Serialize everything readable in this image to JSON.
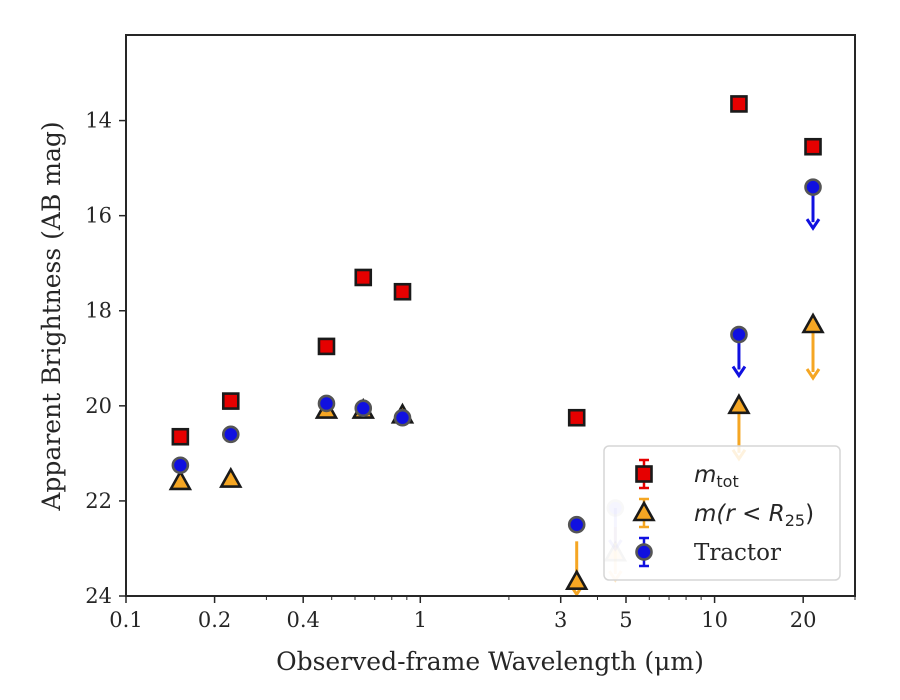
{
  "chart_data": {
    "type": "scatter",
    "title": "",
    "xlabel": "Observed-frame Wavelength (μm)",
    "ylabel": "Apparent Brightness (AB mag)",
    "xscale": "log",
    "xlim": [
      0.1,
      30
    ],
    "ylim": [
      24,
      12.2
    ],
    "y_inverted": true,
    "grid": false,
    "legend_position": "lower-right",
    "x_ticks": [
      0.1,
      0.2,
      0.4,
      1,
      3,
      5,
      10,
      20
    ],
    "x_tick_labels": [
      "0.1",
      "0.2",
      "0.4",
      "1",
      "3",
      "5",
      "10",
      "20"
    ],
    "y_ticks": [
      14,
      16,
      18,
      20,
      22,
      24
    ],
    "y_tick_labels": [
      "14",
      "16",
      "18",
      "20",
      "22",
      "24"
    ],
    "series": [
      {
        "name": "m_tot",
        "legend_label": {
          "base": "m",
          "sub": "tot"
        },
        "marker": "square",
        "color": "#e60000",
        "edge": "#1a1a1a",
        "points": [
          {
            "x": 0.153,
            "y": 20.65
          },
          {
            "x": 0.227,
            "y": 19.9
          },
          {
            "x": 0.48,
            "y": 18.75
          },
          {
            "x": 0.64,
            "y": 17.3
          },
          {
            "x": 0.87,
            "y": 17.6
          },
          {
            "x": 3.4,
            "y": 20.25
          },
          {
            "x": 12.1,
            "y": 13.65
          },
          {
            "x": 21.6,
            "y": 14.55
          }
        ]
      },
      {
        "name": "m(r<R25)",
        "legend_label": {
          "pre": "m(r < R",
          "sub": "25",
          "post": ")"
        },
        "marker": "triangle",
        "color": "#f5a623",
        "edge": "#1a1a1a",
        "points": [
          {
            "x": 0.153,
            "y": 21.6
          },
          {
            "x": 0.227,
            "y": 21.55
          },
          {
            "x": 0.48,
            "y": 20.1
          },
          {
            "x": 0.64,
            "y": 20.1
          },
          {
            "x": 0.87,
            "y": 20.2
          },
          {
            "x": 3.4,
            "y": 23.7,
            "upper_limit": true,
            "from": 22.85
          },
          {
            "x": 4.6,
            "y": 23.1,
            "upper_limit": true,
            "faded": true,
            "from": 22.55
          },
          {
            "x": 12.1,
            "y": 20.0,
            "upper_limit": true,
            "from": 20.0
          },
          {
            "x": 21.6,
            "y": 18.3,
            "upper_limit": true,
            "from": 18.3
          }
        ]
      },
      {
        "name": "Tractor",
        "marker": "circle",
        "color": "#1010e0",
        "edge": "#555555",
        "points": [
          {
            "x": 0.153,
            "y": 21.25
          },
          {
            "x": 0.227,
            "y": 20.6
          },
          {
            "x": 0.48,
            "y": 19.95
          },
          {
            "x": 0.64,
            "y": 20.05
          },
          {
            "x": 0.87,
            "y": 20.25
          },
          {
            "x": 3.4,
            "y": 22.5
          },
          {
            "x": 4.6,
            "y": 22.15,
            "upper_limit": true,
            "faded": true
          },
          {
            "x": 12.1,
            "y": 18.5,
            "upper_limit": true
          },
          {
            "x": 21.6,
            "y": 15.4,
            "upper_limit": true
          }
        ]
      }
    ]
  }
}
